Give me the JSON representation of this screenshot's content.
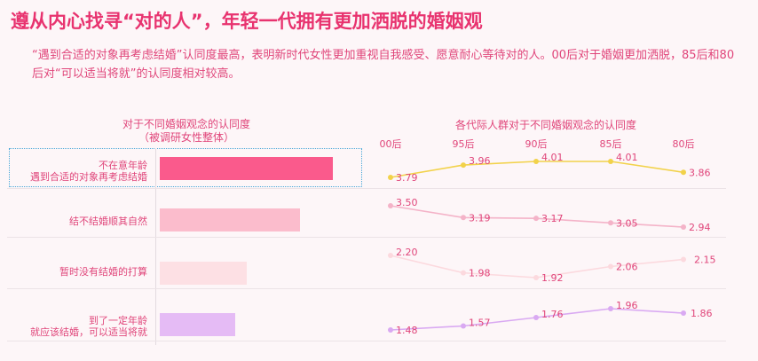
{
  "title": "遵从内心找寻“对的人”，年轻一代拥有更加洒脱的婚姻观",
  "description": "“遇到合适的对象再考虑结婚”认同度最高，表明新时代女性更加重视自我感受、愿意耐心等待对的人。00后对于婚姻更加洒脱，85后和80后对“可以适当将就”的认同度相对较高。",
  "left_section": {
    "title_line1": "对于不同婚姻观念的认同度",
    "title_line2": "（被调研女性整体）"
  },
  "right_section": {
    "title": "各代际人群对于不同婚姻观念的认同度"
  },
  "row_labels": [
    [
      "不在意年龄",
      "遇到合适的对象再考虑结婚"
    ],
    [
      "结不结婚顺其自然"
    ],
    [
      "暂时没有结婚的打算"
    ],
    [
      "到了一定年龄",
      "就应该结婚，可以适当将就"
    ]
  ],
  "colors": {
    "bars": [
      "#fa5a8c",
      "#fbbccc",
      "#fde0e4",
      "#e5bbf5"
    ],
    "lines": [
      "#f2d24a",
      "#f4b3c8",
      "#fcd9de",
      "#d9a9f2"
    ]
  },
  "chart_data": [
    {
      "type": "bar",
      "orientation": "horizontal",
      "categories": [
        "不在意年龄 遇到合适的对象再考虑结婚",
        "结不结婚顺其自然",
        "暂时没有结婚的打算",
        "到了一定年龄 就应该结婚，可以适当将就"
      ],
      "values": [
        3.9,
        3.15,
        1.95,
        1.7
      ],
      "title": "对于不同婚姻观念的认同度（被调研女性整体）"
    },
    {
      "type": "line",
      "x": [
        "00后",
        "95后",
        "90后",
        "85后",
        "80后"
      ],
      "series": [
        {
          "values": [
            3.79,
            3.96,
            4.01,
            4.01,
            3.86
          ]
        },
        {
          "values": [
            3.5,
            3.19,
            3.17,
            3.05,
            2.94
          ]
        },
        {
          "values": [
            2.2,
            1.98,
            1.92,
            2.06,
            2.15
          ]
        },
        {
          "values": [
            1.48,
            1.57,
            1.76,
            1.96,
            1.86
          ]
        }
      ],
      "title": "各代际人群对于不同婚姻观念的认同度"
    }
  ]
}
